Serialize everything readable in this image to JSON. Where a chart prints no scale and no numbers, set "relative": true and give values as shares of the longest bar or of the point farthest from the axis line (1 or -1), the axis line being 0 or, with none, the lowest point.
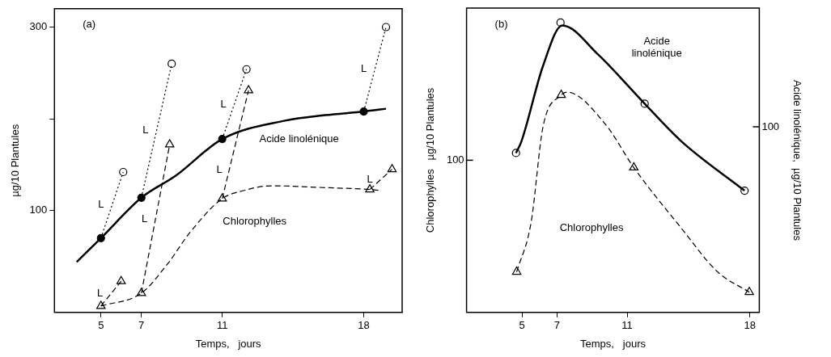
{
  "chart_data": [
    {
      "type": "line",
      "title": "(a)",
      "xlabel": "Temps,   jours",
      "ylabel": "µg/10 Plantules",
      "xlim": [
        2.7,
        19.9
      ],
      "xticks": [
        5,
        7,
        11,
        18
      ],
      "ylim": [
        -11,
        320
      ],
      "yticks": [
        100,
        {
          "value": 200,
          "label": null
        },
        300
      ],
      "series": [
        {
          "name": "Acide linolénique",
          "color": "#000000",
          "line_style": "solid",
          "marker": "none",
          "x": [
            3.8,
            5,
            7,
            8.7,
            11,
            14.1,
            16.1,
            18,
            19.1
          ],
          "values": [
            44,
            70,
            114,
            138,
            178,
            198,
            204,
            208,
            211
          ]
        },
        {
          "name": "Chlorophylles",
          "color": "#000000",
          "line_style": "dashed",
          "marker": "none",
          "x": [
            5,
            7,
            8.3,
            9.4,
            11,
            12.1,
            13.4,
            16.1,
            18.3,
            18.8
          ],
          "values": [
            -4,
            10,
            42,
            76,
            113,
            122,
            127,
            125,
            123,
            122
          ]
        },
        {
          "name": "L",
          "color": "#000000",
          "line_style": "dotted",
          "marker": "none",
          "x": [
            5,
            6.1
          ],
          "values": [
            70,
            142
          ]
        },
        {
          "name": "L",
          "color": "#000000",
          "line_style": "dotted",
          "marker": "none",
          "x": [
            7,
            8.5
          ],
          "values": [
            114,
            260
          ]
        },
        {
          "name": "L",
          "color": "#000000",
          "line_style": "dotted",
          "marker": "none",
          "x": [
            11,
            12.2
          ],
          "values": [
            178,
            254
          ]
        },
        {
          "name": "L",
          "color": "#000000",
          "line_style": "dotted",
          "marker": "none",
          "x": [
            18,
            19.1
          ],
          "values": [
            208,
            300
          ]
        },
        {
          "name": "L",
          "color": "#000000",
          "line_style": "dashed",
          "marker": "none",
          "x": [
            5,
            6
          ],
          "values": [
            -4,
            23
          ]
        },
        {
          "name": "L",
          "color": "#000000",
          "line_style": "dashed",
          "marker": "none",
          "x": [
            7,
            8.4
          ],
          "values": [
            10,
            172
          ]
        },
        {
          "name": "L",
          "color": "#000000",
          "line_style": "dashed",
          "marker": "none",
          "x": [
            11,
            12.3
          ],
          "values": [
            113,
            231
          ]
        },
        {
          "name": "L",
          "color": "#000000",
          "line_style": "dashed",
          "marker": "none",
          "x": [
            18.3,
            19.4
          ],
          "values": [
            123,
            145
          ]
        },
        {
          "type": "scatter",
          "color": "#000000",
          "marker": "circle",
          "x": [
            5,
            7,
            11,
            18
          ],
          "values": [
            70,
            114,
            178,
            208
          ]
        },
        {
          "type": "scatter",
          "color": "#ffffff",
          "marker": "circle",
          "x": [
            6.1,
            8.5,
            12.2,
            19.1
          ],
          "values": [
            142,
            260,
            254,
            300
          ]
        },
        {
          "type": "scatter",
          "color": "#ffffff",
          "marker": "triangle",
          "x": [
            5,
            7,
            11,
            18.3,
            6,
            8.4,
            12.3,
            19.4
          ],
          "values": [
            -4,
            10,
            113,
            123,
            23,
            172,
            231,
            145
          ]
        }
      ]
    },
    {
      "type": "line",
      "title": "(b)",
      "xlabel": "Temps,   jours",
      "ylabel": "Chlorophylles   µg/10 Plantules",
      "y2label": "Acide linolénique,  µg/10 Plantules",
      "relative": true,
      "xlim": [
        1.84,
        18.54
      ],
      "xticks": [
        5,
        7,
        11,
        18
      ],
      "series": [
        {
          "name": "Acide\nlinolénique",
          "color": "#000000",
          "line_style": "solid",
          "marker": "none",
          "x": [
            4.66,
            4.97,
            6.2,
            7.3,
            9.34,
            12.0,
            14.1,
            17.7
          ],
          "values": [
            0.55,
            0.59,
            0.85,
            0.99,
            0.89,
            0.72,
            0.59,
            0.42
          ]
        },
        {
          "name": "Chlorophylles",
          "color": "#000000",
          "line_style": "dashed",
          "marker": "none",
          "x": [
            4.7,
            5.52,
            6.2,
            7.24,
            7.57,
            9.75,
            11.38,
            14.1,
            16.16,
            17.97
          ],
          "values": [
            0.14,
            0.31,
            0.64,
            0.75,
            0.76,
            0.65,
            0.5,
            0.29,
            0.14,
            0.07
          ]
        },
        {
          "type": "scatter",
          "color": "#ffffff",
          "marker": "circle",
          "x": [
            4.66,
            7.2,
            12.0,
            17.7
          ],
          "values": [
            0.55,
            1.0,
            0.72,
            0.42
          ]
        },
        {
          "type": "scatter",
          "color": "#ffffff",
          "marker": "triangle",
          "x": [
            4.7,
            7.24,
            11.38,
            17.97
          ],
          "values": [
            0.14,
            0.75,
            0.5,
            0.07
          ]
        }
      ],
      "annotations": [
        "100",
        "100"
      ]
    }
  ]
}
